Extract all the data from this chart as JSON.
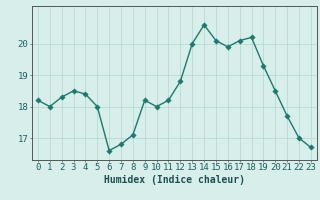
{
  "x": [
    0,
    1,
    2,
    3,
    4,
    5,
    6,
    7,
    8,
    9,
    10,
    11,
    12,
    13,
    14,
    15,
    16,
    17,
    18,
    19,
    20,
    21,
    22,
    23
  ],
  "y": [
    18.2,
    18.0,
    18.3,
    18.5,
    18.4,
    18.0,
    16.6,
    16.8,
    17.1,
    18.2,
    18.0,
    18.2,
    18.8,
    20.0,
    20.6,
    20.1,
    19.9,
    20.1,
    20.2,
    19.3,
    18.5,
    17.7,
    17.0,
    16.7
  ],
  "xlabel": "Humidex (Indice chaleur)",
  "ylim": [
    16.3,
    21.2
  ],
  "xlim": [
    -0.5,
    23.5
  ],
  "yticks": [
    17,
    18,
    19,
    20
  ],
  "xticks": [
    0,
    1,
    2,
    3,
    4,
    5,
    6,
    7,
    8,
    9,
    10,
    11,
    12,
    13,
    14,
    15,
    16,
    17,
    18,
    19,
    20,
    21,
    22,
    23
  ],
  "line_color": "#1c7a6d",
  "marker_color": "#1c7a6d",
  "bg_color": "#d8eeeb",
  "grid_color": "#b0d8d2",
  "axis_color": "#555555",
  "tick_label_color": "#1c6060",
  "xlabel_color": "#1c5050",
  "xlabel_fontsize": 7,
  "tick_fontsize": 6.5,
  "marker_size": 2.8,
  "line_width": 1.0
}
